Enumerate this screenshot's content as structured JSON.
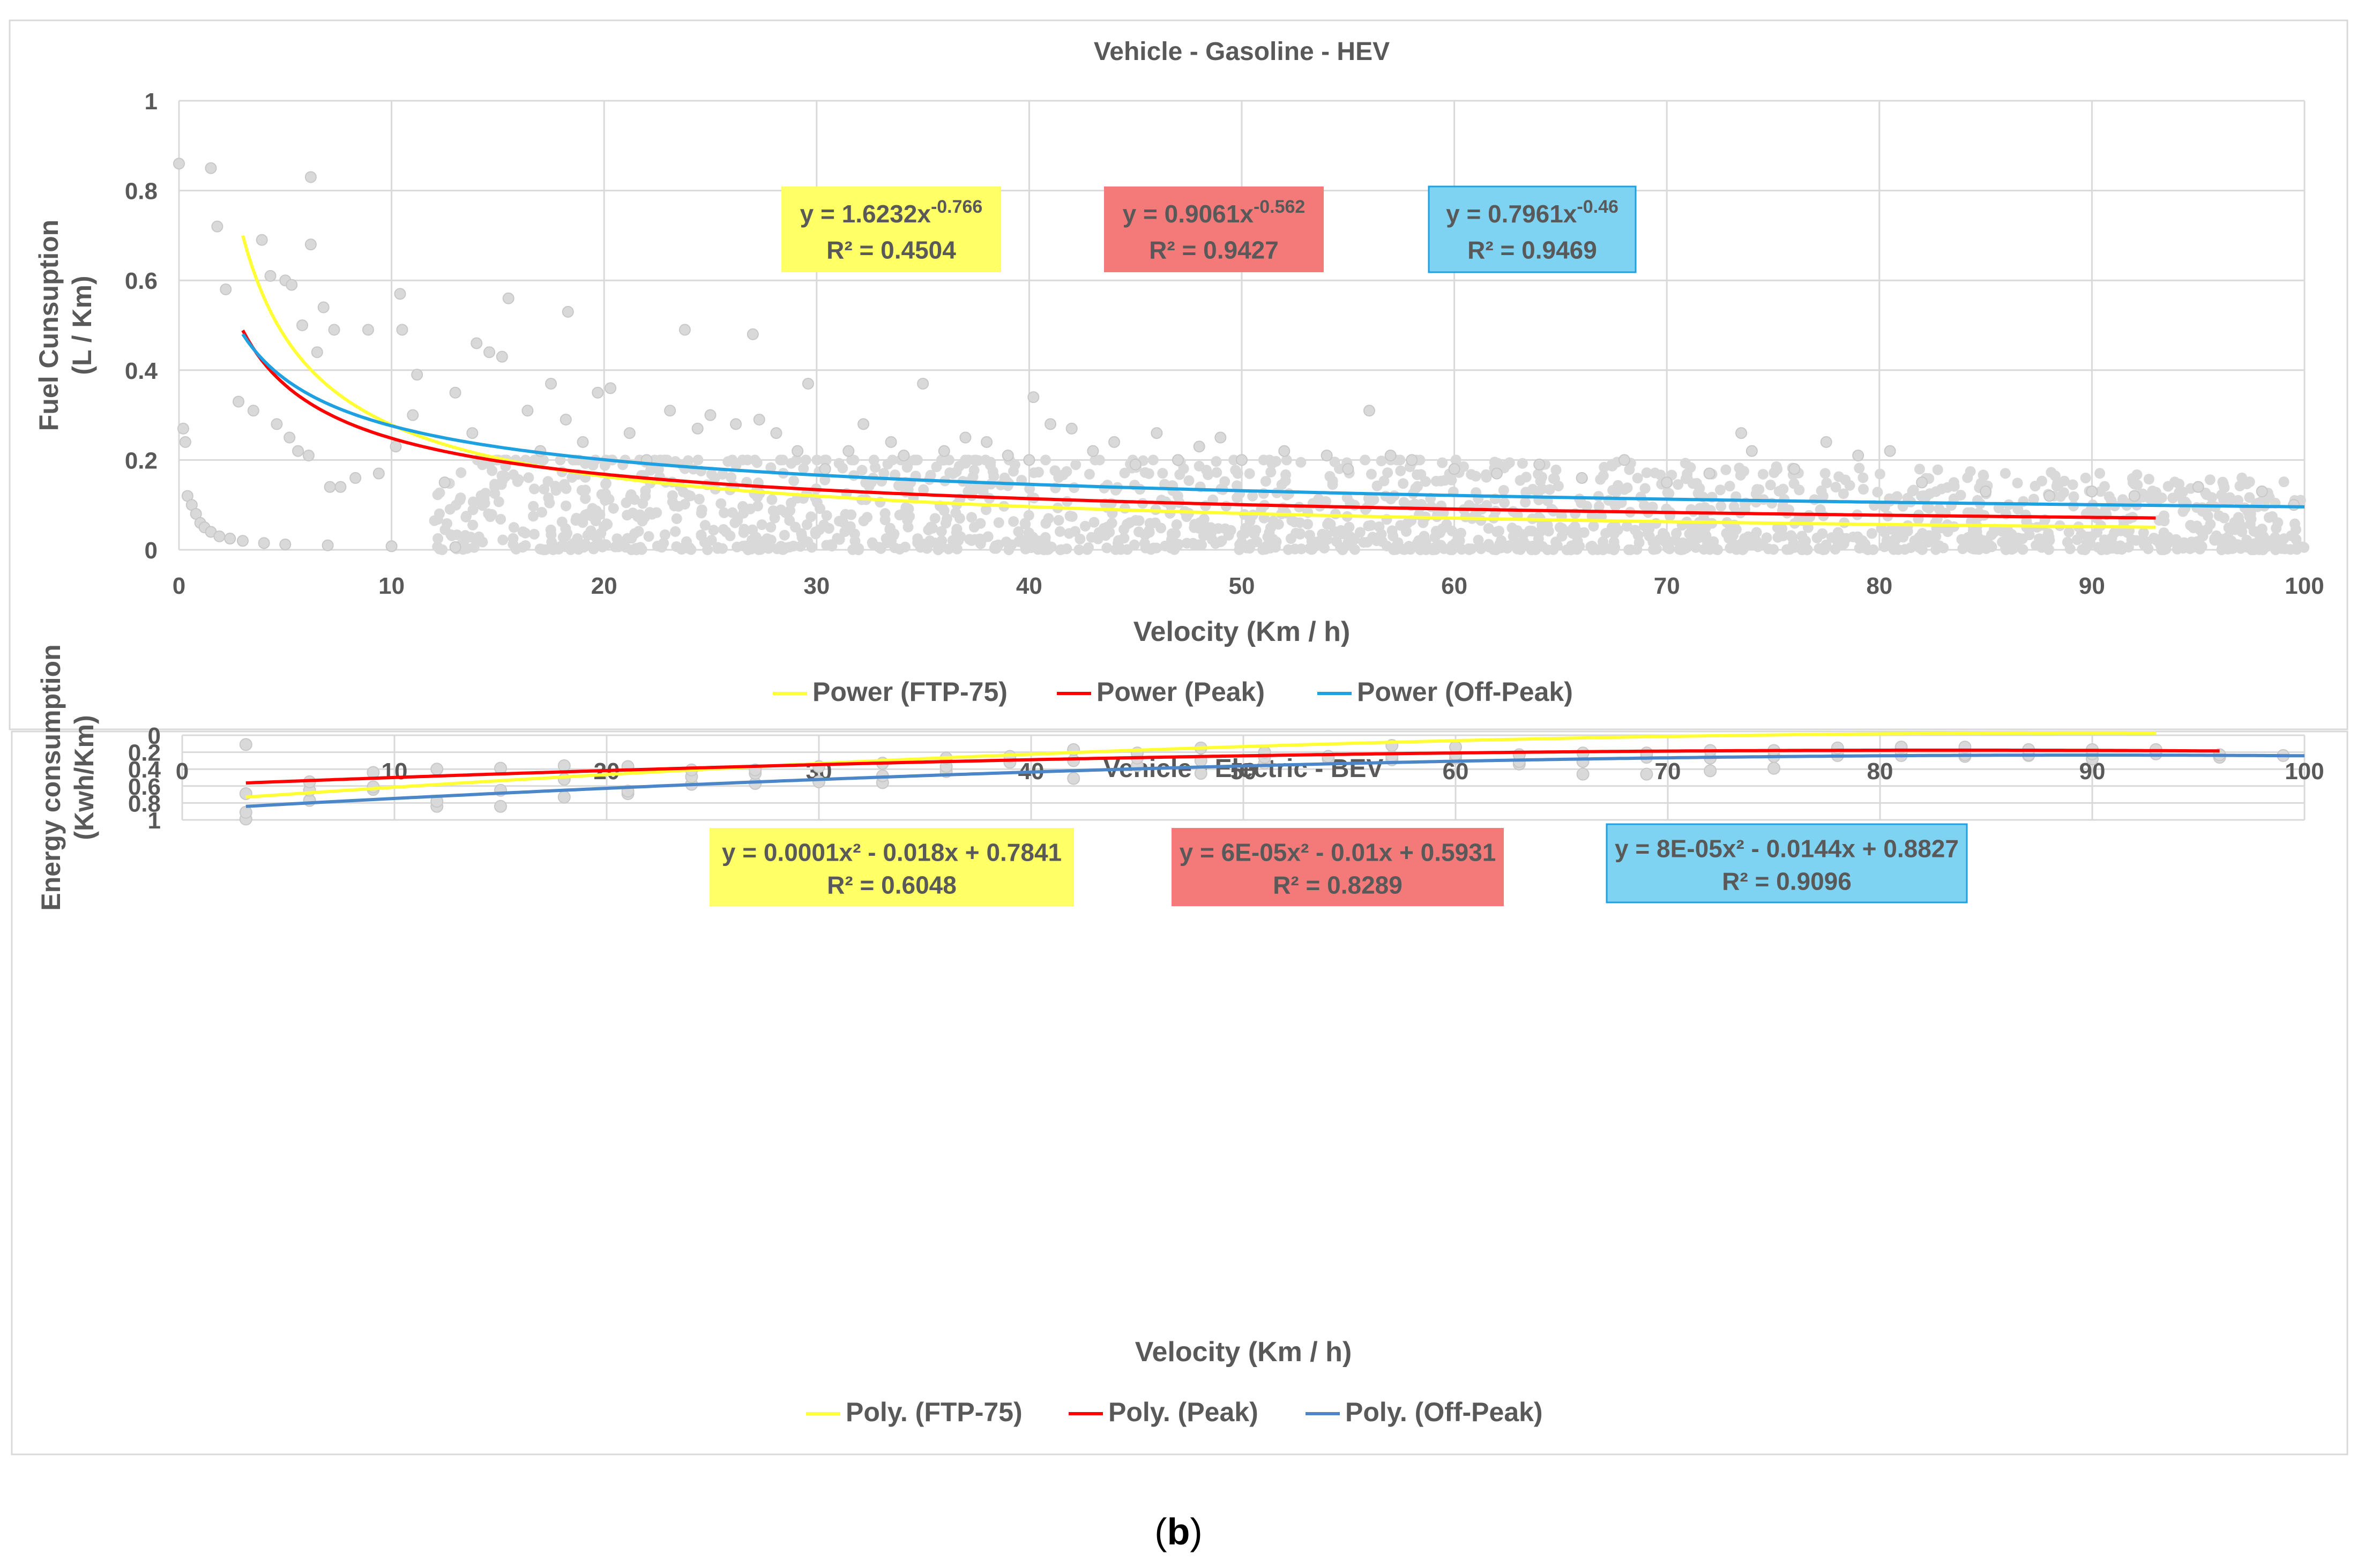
{
  "figure_label": "(b)",
  "chart_data": [
    {
      "type": "scatter",
      "title": "Vehicle - Gasoline - HEV",
      "xlabel": "Velocity (Km / h)",
      "ylabel": "Fuel Cunsuption\n(L / Km)",
      "xlim": [
        0,
        100
      ],
      "ylim": [
        0,
        1
      ],
      "xticks": [
        0,
        10,
        20,
        30,
        40,
        50,
        60,
        70,
        80,
        90,
        100
      ],
      "yticks": [
        0,
        0.2,
        0.4,
        0.6,
        0.8,
        1
      ],
      "grid": true,
      "legend_position": "bottom",
      "scatter_color": "#d9d9d9",
      "scatter_points": [
        [
          0,
          0.86
        ],
        [
          1.5,
          0.85
        ],
        [
          6.2,
          0.83
        ],
        [
          1.8,
          0.72
        ],
        [
          6.2,
          0.68
        ],
        [
          3.9,
          0.69
        ],
        [
          4.3,
          0.61
        ],
        [
          5.0,
          0.6
        ],
        [
          5.3,
          0.59
        ],
        [
          2.2,
          0.58
        ],
        [
          6.8,
          0.54
        ],
        [
          5.8,
          0.5
        ],
        [
          6.5,
          0.44
        ],
        [
          7.3,
          0.49
        ],
        [
          8.9,
          0.49
        ],
        [
          10.4,
          0.57
        ],
        [
          10.5,
          0.49
        ],
        [
          15.5,
          0.56
        ],
        [
          18.3,
          0.53
        ],
        [
          0.2,
          0.27
        ],
        [
          0.3,
          0.24
        ],
        [
          0.4,
          0.12
        ],
        [
          0.6,
          0.1
        ],
        [
          0.8,
          0.08
        ],
        [
          1.0,
          0.06
        ],
        [
          1.2,
          0.05
        ],
        [
          1.5,
          0.04
        ],
        [
          1.9,
          0.03
        ],
        [
          2.4,
          0.025
        ],
        [
          3.0,
          0.02
        ],
        [
          4,
          0.015
        ],
        [
          5,
          0.012
        ],
        [
          7,
          0.01
        ],
        [
          10,
          0.008
        ],
        [
          13,
          0.006
        ],
        [
          2.8,
          0.33
        ],
        [
          3.5,
          0.31
        ],
        [
          4.6,
          0.28
        ],
        [
          5.2,
          0.25
        ],
        [
          5.6,
          0.22
        ],
        [
          6.1,
          0.21
        ],
        [
          7.1,
          0.14
        ],
        [
          7.6,
          0.14
        ],
        [
          8.3,
          0.16
        ],
        [
          9.4,
          0.17
        ],
        [
          10.2,
          0.23
        ],
        [
          11.0,
          0.3
        ],
        [
          11.2,
          0.39
        ],
        [
          13.0,
          0.35
        ],
        [
          14.0,
          0.46
        ],
        [
          14.6,
          0.44
        ],
        [
          15.2,
          0.43
        ],
        [
          12.5,
          0.15
        ],
        [
          13.8,
          0.26
        ],
        [
          16.4,
          0.31
        ],
        [
          17.0,
          0.22
        ],
        [
          17.5,
          0.37
        ],
        [
          18.2,
          0.29
        ],
        [
          19.0,
          0.24
        ],
        [
          19.7,
          0.35
        ],
        [
          20.3,
          0.36
        ],
        [
          21.2,
          0.26
        ],
        [
          22.0,
          0.2
        ],
        [
          23.1,
          0.31
        ],
        [
          23.8,
          0.49
        ],
        [
          24.4,
          0.27
        ],
        [
          25.0,
          0.3
        ],
        [
          26.2,
          0.28
        ],
        [
          27.0,
          0.48
        ],
        [
          27.3,
          0.29
        ],
        [
          28.1,
          0.26
        ],
        [
          29.1,
          0.22
        ],
        [
          29.6,
          0.37
        ],
        [
          30.4,
          0.18
        ],
        [
          31.5,
          0.22
        ],
        [
          32.2,
          0.28
        ],
        [
          33.5,
          0.24
        ],
        [
          34.1,
          0.21
        ],
        [
          35.0,
          0.37
        ],
        [
          36.0,
          0.22
        ],
        [
          37.0,
          0.25
        ],
        [
          38.0,
          0.24
        ],
        [
          39.0,
          0.21
        ],
        [
          40.0,
          0.2
        ],
        [
          40.2,
          0.34
        ],
        [
          41.0,
          0.28
        ],
        [
          42.0,
          0.27
        ],
        [
          43.0,
          0.22
        ],
        [
          44.0,
          0.24
        ],
        [
          45.0,
          0.19
        ],
        [
          46.0,
          0.26
        ],
        [
          47.0,
          0.2
        ],
        [
          48.0,
          0.23
        ],
        [
          49.0,
          0.25
        ],
        [
          50.0,
          0.2
        ],
        [
          52.0,
          0.22
        ],
        [
          54.0,
          0.21
        ],
        [
          55.0,
          0.18
        ],
        [
          56.0,
          0.31
        ],
        [
          57.0,
          0.21
        ],
        [
          58.0,
          0.2
        ],
        [
          60.0,
          0.18
        ],
        [
          62.0,
          0.17
        ],
        [
          64.0,
          0.19
        ],
        [
          66.0,
          0.16
        ],
        [
          68.0,
          0.2
        ],
        [
          70.0,
          0.15
        ],
        [
          72.0,
          0.17
        ],
        [
          73.5,
          0.26
        ],
        [
          74.0,
          0.22
        ],
        [
          76.0,
          0.18
        ],
        [
          77.5,
          0.24
        ],
        [
          79.0,
          0.21
        ],
        [
          80.5,
          0.22
        ],
        [
          82.0,
          0.15
        ],
        [
          85.0,
          0.13
        ],
        [
          88.0,
          0.12
        ],
        [
          90.0,
          0.13
        ],
        [
          92.0,
          0.12
        ],
        [
          95.0,
          0.14
        ],
        [
          98.0,
          0.13
        ],
        [
          99.5,
          0.1
        ]
      ],
      "scatter_band": {
        "x_min": 12,
        "x_max": 100,
        "y_min": 0.0,
        "y_max": 0.2
      },
      "series": [
        {
          "name": "Power (FTP-75)",
          "color": "#ffff33",
          "model": "power",
          "a": 1.6232,
          "b": -0.766,
          "x_range": [
            3,
            93
          ],
          "equation": "y = 1.6232x",
          "equation_exp": "-0.766",
          "r2": "R² = 0.4504",
          "box_fill": "#ffff66"
        },
        {
          "name": "Power (Peak)",
          "color": "#ff0000",
          "model": "power",
          "a": 0.9061,
          "b": -0.562,
          "x_range": [
            3,
            93
          ],
          "equation": "y = 0.9061x",
          "equation_exp": "-0.562",
          "r2": "R² = 0.9427",
          "box_fill": "#f47a7a"
        },
        {
          "name": "Power (Off-Peak)",
          "color": "#1fa0e0",
          "model": "power",
          "a": 0.7961,
          "b": -0.46,
          "x_range": [
            3,
            100
          ],
          "equation": "y = 0.7961x",
          "equation_exp": "-0.46",
          "r2": "R² = 0.9469",
          "box_fill": "#7fd3f2"
        }
      ]
    },
    {
      "type": "scatter",
      "title": "Vehicle - Electric - BEV",
      "xlabel": "Velocity (Km / h)",
      "ylabel": "Energy consumption\n(Kwh/Km)",
      "xlim": [
        0,
        100
      ],
      "ylim": [
        0,
        1
      ],
      "xticks": [
        0,
        10,
        20,
        30,
        40,
        50,
        60,
        70,
        80,
        90,
        100
      ],
      "yticks": [
        0,
        0.2,
        0.4,
        0.6,
        0.8,
        1
      ],
      "grid": true,
      "legend_position": "bottom",
      "scatter_color": "#d9d9d9",
      "scatter_points": [
        [
          3,
          0.99
        ],
        [
          3,
          0.91
        ],
        [
          3,
          0.69
        ],
        [
          3,
          0.11
        ],
        [
          6,
          0.77
        ],
        [
          6,
          0.65
        ],
        [
          6,
          0.55
        ],
        [
          9,
          0.64
        ],
        [
          9,
          0.61
        ],
        [
          9,
          0.44
        ],
        [
          12,
          0.84
        ],
        [
          12,
          0.78
        ],
        [
          12,
          0.4
        ],
        [
          15,
          0.84
        ],
        [
          15,
          0.65
        ],
        [
          15,
          0.39
        ],
        [
          18,
          0.73
        ],
        [
          18,
          0.52
        ],
        [
          18,
          0.36
        ],
        [
          21,
          0.69
        ],
        [
          21,
          0.66
        ],
        [
          21,
          0.37
        ],
        [
          24,
          0.58
        ],
        [
          24,
          0.49
        ],
        [
          24,
          0.41
        ],
        [
          27,
          0.57
        ],
        [
          27,
          0.45
        ],
        [
          27,
          0.41
        ],
        [
          30,
          0.55
        ],
        [
          30,
          0.37
        ],
        [
          33,
          0.56
        ],
        [
          33,
          0.48
        ],
        [
          33,
          0.33
        ],
        [
          36,
          0.43
        ],
        [
          36,
          0.37
        ],
        [
          36,
          0.27
        ],
        [
          39,
          0.32
        ],
        [
          39,
          0.25
        ],
        [
          42,
          0.51
        ],
        [
          42,
          0.3
        ],
        [
          42,
          0.17
        ],
        [
          45,
          0.36
        ],
        [
          45,
          0.27
        ],
        [
          45,
          0.21
        ],
        [
          48,
          0.45
        ],
        [
          48,
          0.3
        ],
        [
          48,
          0.15
        ],
        [
          51,
          0.33
        ],
        [
          51,
          0.26
        ],
        [
          51,
          0.2
        ],
        [
          54,
          0.28
        ],
        [
          54,
          0.25
        ],
        [
          57,
          0.29
        ],
        [
          57,
          0.25
        ],
        [
          57,
          0.12
        ],
        [
          60,
          0.27
        ],
        [
          60,
          0.23
        ],
        [
          60,
          0.14
        ],
        [
          63,
          0.34
        ],
        [
          63,
          0.31
        ],
        [
          63,
          0.23
        ],
        [
          66,
          0.46
        ],
        [
          66,
          0.31
        ],
        [
          66,
          0.21
        ],
        [
          69,
          0.46
        ],
        [
          69,
          0.26
        ],
        [
          69,
          0.21
        ],
        [
          72,
          0.42
        ],
        [
          72,
          0.27
        ],
        [
          72,
          0.18
        ],
        [
          75,
          0.39
        ],
        [
          75,
          0.25
        ],
        [
          75,
          0.18
        ],
        [
          78,
          0.24
        ],
        [
          78,
          0.19
        ],
        [
          78,
          0.15
        ],
        [
          81,
          0.24
        ],
        [
          81,
          0.19
        ],
        [
          81,
          0.14
        ],
        [
          84,
          0.25
        ],
        [
          84,
          0.23
        ],
        [
          84,
          0.14
        ],
        [
          87,
          0.24
        ],
        [
          87,
          0.23
        ],
        [
          87,
          0.17
        ],
        [
          90,
          0.28
        ],
        [
          90,
          0.22
        ],
        [
          90,
          0.17
        ],
        [
          93,
          0.22
        ],
        [
          93,
          0.17
        ],
        [
          96,
          0.26
        ],
        [
          96,
          0.23
        ],
        [
          99,
          0.24
        ]
      ],
      "series": [
        {
          "name": "Poly. (FTP-75)",
          "color": "#ffff33",
          "model": "poly2",
          "c2": 0.0001,
          "c1": -0.018,
          "c0": 0.7841,
          "x_range": [
            3,
            93
          ],
          "equation": "y = 0.0001x² - 0.018x + 0.7841",
          "r2": "R² = 0.6048",
          "box_fill": "#ffff66"
        },
        {
          "name": "Poly. (Peak)",
          "color": "#ff0000",
          "model": "poly2",
          "c2": 6e-05,
          "c1": -0.01,
          "c0": 0.5931,
          "x_range": [
            3,
            96
          ],
          "equation": "y = 6E-05x² - 0.01x + 0.5931",
          "r2": "R² = 0.8289",
          "box_fill": "#f47a7a"
        },
        {
          "name": "Poly. (Off-Peak)",
          "color": "#4a86c8",
          "model": "poly2",
          "c2": 8e-05,
          "c1": -0.0144,
          "c0": 0.8827,
          "x_range": [
            3,
            100
          ],
          "equation": "y = 8E-05x² - 0.0144x + 0.8827",
          "r2": "R² = 0.9096",
          "box_fill": "#7fd3f2"
        }
      ]
    }
  ]
}
